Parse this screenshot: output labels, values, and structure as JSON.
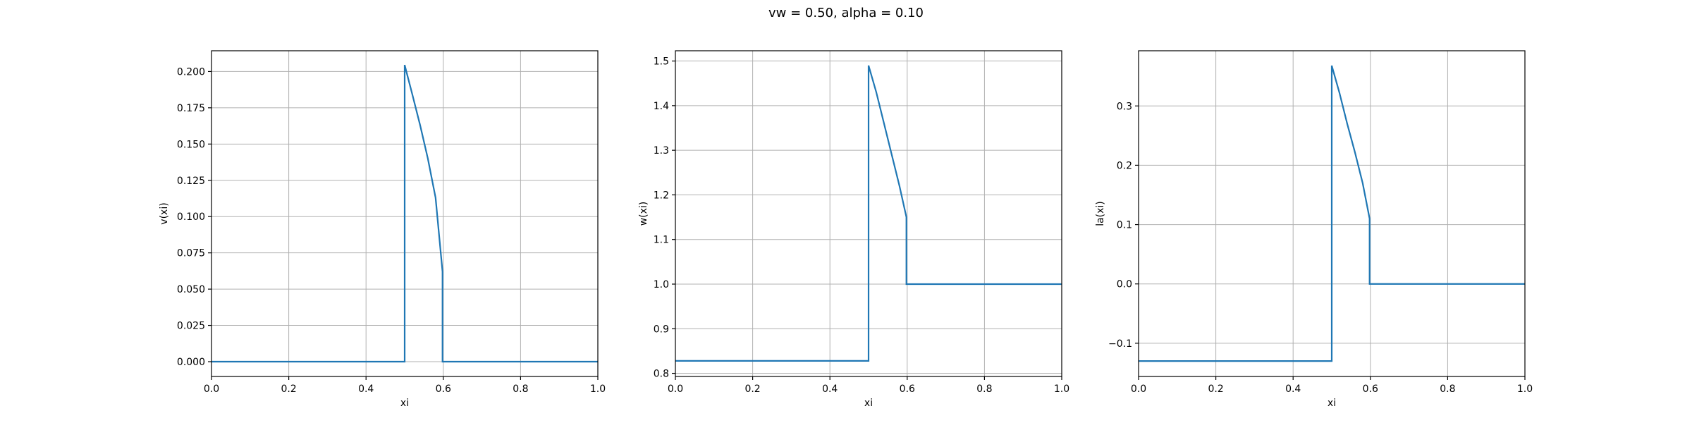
{
  "figure": {
    "title": "vw = 0.50, alpha = 0.10"
  },
  "colors": {
    "line": "#1f77b4",
    "grid": "#b0b0b0",
    "axes": "#000000"
  },
  "chart_data": [
    {
      "type": "line",
      "xlabel": "xi",
      "ylabel": "v(xi)",
      "xlim": [
        0.0,
        1.0
      ],
      "ylim": [
        -0.0102,
        0.2143
      ],
      "xticks": [
        0.0,
        0.2,
        0.4,
        0.6,
        0.8,
        1.0
      ],
      "xtick_labels": [
        "0.0",
        "0.2",
        "0.4",
        "0.6",
        "0.8",
        "1.0"
      ],
      "yticks": [
        0.0,
        0.025,
        0.05,
        0.075,
        0.1,
        0.125,
        0.15,
        0.175,
        0.2
      ],
      "ytick_labels": [
        "0.000",
        "0.025",
        "0.050",
        "0.075",
        "0.100",
        "0.125",
        "0.150",
        "0.175",
        "0.200"
      ],
      "grid": true,
      "series": [
        {
          "x": [
            0.0,
            0.5,
            0.5,
            0.52,
            0.54,
            0.56,
            0.58,
            0.598,
            0.598,
            1.0
          ],
          "y": [
            0.0,
            0.0,
            0.2045,
            0.184,
            0.163,
            0.14,
            0.113,
            0.062,
            0.0,
            0.0
          ]
        }
      ]
    },
    {
      "type": "line",
      "xlabel": "xi",
      "ylabel": "w(xi)",
      "xlim": [
        0.0,
        1.0
      ],
      "ylim": [
        0.793,
        1.523
      ],
      "xticks": [
        0.0,
        0.2,
        0.4,
        0.6,
        0.8,
        1.0
      ],
      "xtick_labels": [
        "0.0",
        "0.2",
        "0.4",
        "0.6",
        "0.8",
        "1.0"
      ],
      "yticks": [
        0.8,
        0.9,
        1.0,
        1.1,
        1.2,
        1.3,
        1.4,
        1.5
      ],
      "ytick_labels": [
        "0.8",
        "0.9",
        "1.0",
        "1.1",
        "1.2",
        "1.3",
        "1.4",
        "1.5"
      ],
      "grid": true,
      "series": [
        {
          "x": [
            0.0,
            0.5,
            0.5,
            0.52,
            0.54,
            0.56,
            0.58,
            0.598,
            0.598,
            1.0
          ],
          "y": [
            0.828,
            0.828,
            1.49,
            1.43,
            1.36,
            1.29,
            1.22,
            1.15,
            1.0,
            1.0
          ]
        }
      ]
    },
    {
      "type": "line",
      "xlabel": "xi",
      "ylabel": "la(xi)",
      "xlim": [
        0.0,
        1.0
      ],
      "ylim": [
        -0.156,
        0.393
      ],
      "xticks": [
        0.0,
        0.2,
        0.4,
        0.6,
        0.8,
        1.0
      ],
      "xtick_labels": [
        "0.0",
        "0.2",
        "0.4",
        "0.6",
        "0.8",
        "1.0"
      ],
      "yticks": [
        -0.1,
        0.0,
        0.1,
        0.2,
        0.3
      ],
      "ytick_labels": [
        "−0.1",
        "0.0",
        "0.1",
        "0.2",
        "0.3"
      ],
      "grid": true,
      "series": [
        {
          "x": [
            0.0,
            0.5,
            0.5,
            0.52,
            0.54,
            0.56,
            0.58,
            0.598,
            0.598,
            1.0
          ],
          "y": [
            -0.13,
            -0.13,
            0.368,
            0.322,
            0.27,
            0.222,
            0.17,
            0.11,
            0.0,
            0.0
          ]
        }
      ]
    }
  ]
}
